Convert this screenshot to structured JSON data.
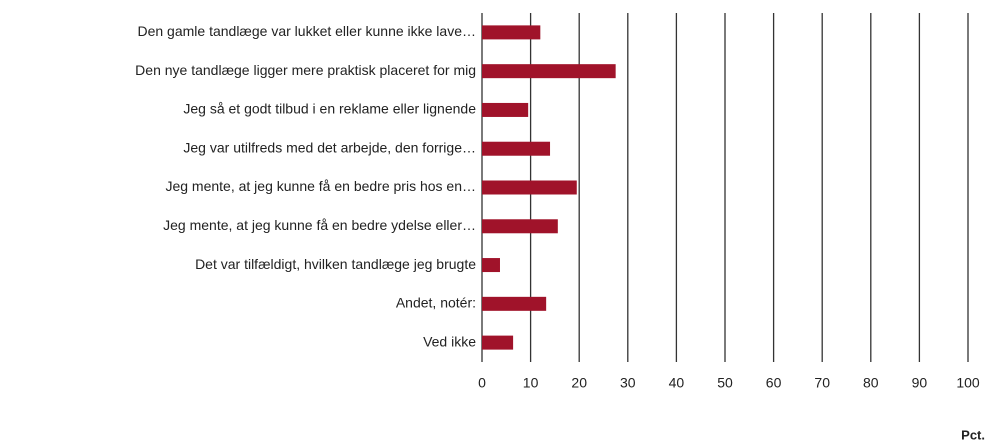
{
  "chart_data": {
    "type": "bar",
    "orientation": "horizontal",
    "categories": [
      "Den gamle tandlæge var lukket eller kunne ikke lave…",
      "Den nye tandlæge ligger mere praktisk placeret for mig",
      "Jeg så et godt tilbud i en reklame eller lignende",
      "Jeg var utilfreds med det arbejde, den forrige…",
      "Jeg mente, at jeg kunne få en bedre pris hos en…",
      "Jeg mente, at jeg kunne få en bedre ydelse eller…",
      "Det var tilfældigt, hvilken tandlæge jeg brugte",
      "Andet, notér:",
      "Ved ikke"
    ],
    "values": [
      12,
      27.5,
      9.5,
      14,
      19.5,
      15.6,
      3.7,
      13.2,
      6.4
    ],
    "color": "#a0132a",
    "xlim": [
      0,
      100
    ],
    "xticks": [
      0,
      10,
      20,
      30,
      40,
      50,
      60,
      70,
      80,
      90,
      100
    ],
    "x_label": "Pct.",
    "grid": true
  }
}
